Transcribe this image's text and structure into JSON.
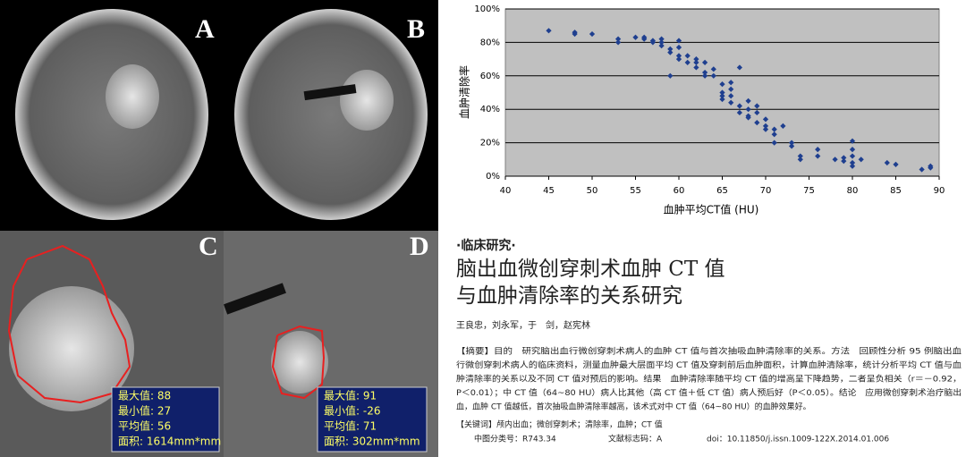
{
  "panels": [
    {
      "label": "A"
    },
    {
      "label": "B"
    },
    {
      "label": "C",
      "readout": [
        "最大值: 88",
        "最小值: 27",
        "平均值: 56",
        "面积: 1614mm*mm"
      ]
    },
    {
      "label": "D",
      "readout": [
        "最大值: 91",
        "最小值: -26",
        "平均值: 71",
        "面积: 302mm*mm"
      ]
    }
  ],
  "chart_data": {
    "type": "scatter",
    "x_label": "血肿平均CT值 (HU)",
    "y_label": "血肿清除率",
    "color": "#1f3f8f",
    "grid": true,
    "xlim": [
      40,
      90
    ],
    "xticks": [
      40,
      45,
      50,
      55,
      60,
      65,
      70,
      75,
      80,
      85,
      90
    ],
    "ylim": [
      0,
      100
    ],
    "yticks": [
      {
        "value": 0,
        "label": "0%"
      },
      {
        "value": 20,
        "label": "20%"
      },
      {
        "value": 40,
        "label": "40%"
      },
      {
        "value": 60,
        "label": "60%"
      },
      {
        "value": 80,
        "label": "80%"
      },
      {
        "value": 100,
        "label": "100%"
      }
    ],
    "x": [
      45,
      48,
      48,
      50,
      53,
      53,
      55,
      56,
      56,
      57,
      57,
      58,
      58,
      58,
      59,
      59,
      59,
      60,
      60,
      60,
      60,
      61,
      61,
      62,
      62,
      62,
      63,
      63,
      63,
      64,
      64,
      65,
      65,
      65,
      65,
      66,
      66,
      66,
      66,
      67,
      67,
      67,
      68,
      68,
      68,
      68,
      69,
      69,
      69,
      70,
      70,
      70,
      71,
      71,
      71,
      72,
      73,
      73,
      74,
      74,
      76,
      76,
      78,
      79,
      79,
      80,
      80,
      80,
      80,
      80,
      81,
      84,
      85,
      88,
      89,
      89
    ],
    "values": [
      87,
      86,
      85,
      85,
      82,
      80,
      83,
      82,
      83,
      81,
      80,
      82,
      80,
      78,
      76,
      74,
      60,
      81,
      77,
      72,
      70,
      72,
      68,
      70,
      68,
      65,
      68,
      62,
      60,
      64,
      60,
      55,
      50,
      48,
      46,
      56,
      52,
      48,
      44,
      65,
      42,
      38,
      45,
      40,
      36,
      35,
      42,
      38,
      32,
      34,
      30,
      28,
      28,
      25,
      20,
      30,
      20,
      18,
      12,
      10,
      16,
      12,
      10,
      9,
      11,
      21,
      16,
      12,
      8,
      6,
      10,
      8,
      7,
      4,
      5,
      6
    ]
  },
  "article": {
    "section": "·临床研究·",
    "title": [
      "脑出血微创穿刺术血肿 CT 值",
      "与血肿清除率的关系研究"
    ],
    "authors": "王良忠，刘永军，于　剑，赵宪林",
    "abstract": [
      "【摘要】目的　研究脑出血行微创穿刺术病人的血肿 CT 值与首次抽吸血肿清除率的关系。方法　回顾性分析 95 例脑出血",
      "行微创穿刺术病人的临床资料，测量血肿最大层面平均 CT 值及穿刺前后血肿面积，计算血肿清除率，统计分析平均 CT 值与血",
      "肿清除率的关系以及不同 CT 值对预后的影响。结果　血肿清除率随平均 CT 值的增高呈下降趋势，二者呈负相关（r＝－0.92，",
      "P＜0.01）；中 CT 值（64~80 HU）病人比其他（高 CT 值＋低 CT 值）病人预后好（P＜0.05）。结论　应用微创穿刺术治疗脑出",
      "血，血肿 CT 值越低，首次抽吸血肿清除率越高，该术式对中 CT 值（64~80 HU）的血肿效果好。"
    ],
    "keywords": "【关键词】颅内出血；微创穿刺术；清除率，血肿；CT 值",
    "meta": [
      "中图分类号：R743.34",
      "文献标志码：A",
      "doi：10.11850/j.issn.1009-122X.2014.01.006"
    ]
  }
}
